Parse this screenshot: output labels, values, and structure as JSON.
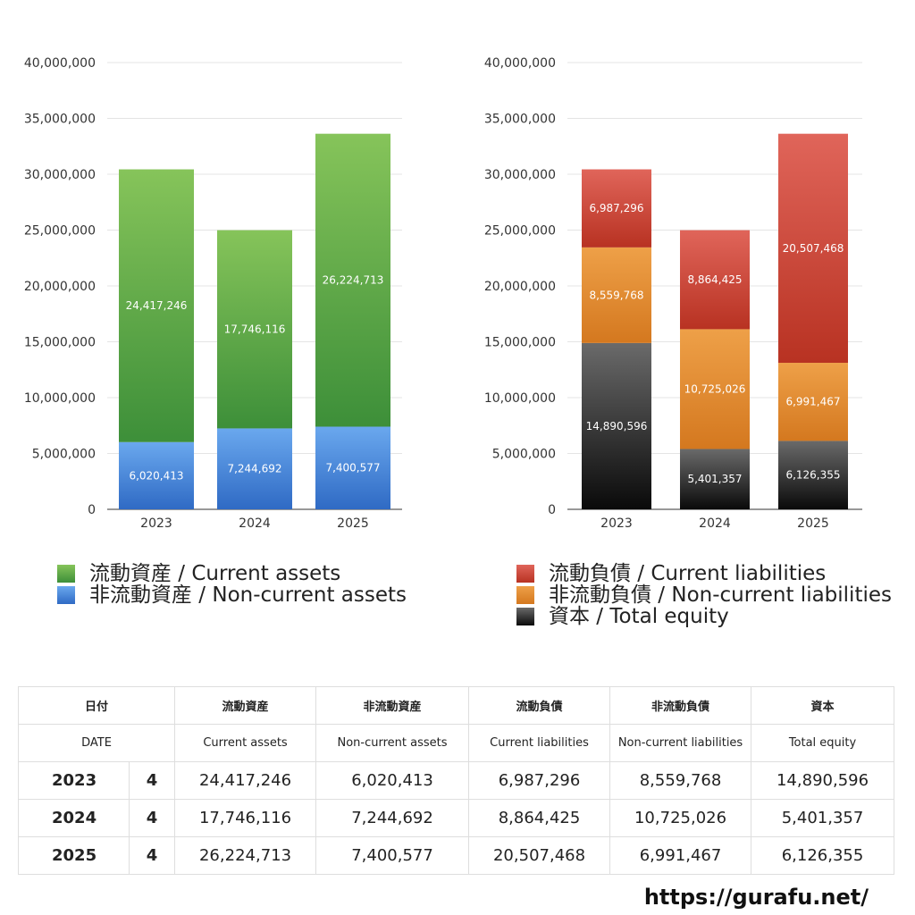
{
  "chart_data": [
    {
      "type": "bar",
      "stacked": true,
      "categories": [
        "2023",
        "2024",
        "2025"
      ],
      "ylim": [
        0,
        40000000
      ],
      "yticks": [
        0,
        5000000,
        10000000,
        15000000,
        20000000,
        25000000,
        30000000,
        35000000,
        40000000
      ],
      "ytick_labels": [
        "0",
        "5,000,000",
        "10,000,000",
        "15,000,000",
        "20,000,000",
        "25,000,000",
        "30,000,000",
        "35,000,000",
        "40,000,000"
      ],
      "series": [
        {
          "name": "非流動資産 / Non-current assets",
          "key": "nca",
          "values": [
            6020413,
            7244692,
            7400577
          ],
          "labels": [
            "6,020,413",
            "7,244,692",
            "7,400,577"
          ],
          "colors": [
            "#6aa8ee",
            "#2f6ac4"
          ]
        },
        {
          "name": "流動資産 / Current assets",
          "key": "ca",
          "values": [
            24417246,
            17746116,
            26224713
          ],
          "labels": [
            "24,417,246",
            "17,746,116",
            "26,224,713"
          ],
          "colors": [
            "#86c45a",
            "#3d8f39"
          ]
        }
      ],
      "legend": [
        "流動資産 / Current assets",
        "非流動資産 / Non-current assets"
      ]
    },
    {
      "type": "bar",
      "stacked": true,
      "categories": [
        "2023",
        "2024",
        "2025"
      ],
      "ylim": [
        0,
        40000000
      ],
      "yticks": [
        0,
        5000000,
        10000000,
        15000000,
        20000000,
        25000000,
        30000000,
        35000000,
        40000000
      ],
      "ytick_labels": [
        "0",
        "5,000,000",
        "10,000,000",
        "15,000,000",
        "20,000,000",
        "25,000,000",
        "30,000,000",
        "35,000,000",
        "40,000,000"
      ],
      "series": [
        {
          "name": "資本 / Total equity",
          "key": "eq",
          "values": [
            14890596,
            5401357,
            6126355
          ],
          "labels": [
            "14,890,596",
            "5,401,357",
            "6,126,355"
          ],
          "colors": [
            "#6a6a6a",
            "#0a0a0a"
          ]
        },
        {
          "name": "非流動負債 / Non-current liabilities",
          "key": "ncl",
          "values": [
            8559768,
            10725026,
            6991467
          ],
          "labels": [
            "8,559,768",
            "10,725,026",
            "6,991,467"
          ],
          "colors": [
            "#eea048",
            "#d4781f"
          ]
        },
        {
          "name": "流動負債 / Current liabilities",
          "key": "cl",
          "values": [
            6987296,
            8864425,
            20507468
          ],
          "labels": [
            "6,987,296",
            "8,864,425",
            "20,507,468"
          ],
          "colors": [
            "#e0655a",
            "#b83222"
          ]
        }
      ],
      "legend": [
        "流動負債 / Current liabilities",
        "非流動負債 / Non-current liabilities",
        "資本 / Total equity"
      ]
    }
  ],
  "legend_left": {
    "current_assets": "流動資産 / Current assets",
    "noncurrent_assets": "非流動資産 / Non-current assets"
  },
  "legend_right": {
    "current_liabilities": "流動負債 / Current liabilities",
    "noncurrent_liabilities": "非流動負債 / Non-current liabilities",
    "equity": "資本 / Total equity"
  },
  "table": {
    "header_ja": {
      "date": "日付",
      "ca": "流動資産",
      "nca": "非流動資産",
      "cl": "流動負債",
      "ncl": "非流動負債",
      "eq": "資本"
    },
    "header_en": {
      "date": "DATE",
      "ca": "Current assets",
      "nca": "Non-current assets",
      "cl": "Current liabilities",
      "ncl": "Non-current liabilities",
      "eq": "Total equity"
    },
    "rows": [
      {
        "year": "2023",
        "q": "4",
        "ca": "24,417,246",
        "nca": "6,020,413",
        "cl": "6,987,296",
        "ncl": "8,559,768",
        "eq": "14,890,596"
      },
      {
        "year": "2024",
        "q": "4",
        "ca": "17,746,116",
        "nca": "7,244,692",
        "cl": "8,864,425",
        "ncl": "10,725,026",
        "eq": "5,401,357"
      },
      {
        "year": "2025",
        "q": "4",
        "ca": "26,224,713",
        "nca": "7,400,577",
        "cl": "20,507,468",
        "ncl": "6,991,467",
        "eq": "6,126,355"
      }
    ]
  },
  "footer": {
    "site": "https://gurafu.net/"
  }
}
